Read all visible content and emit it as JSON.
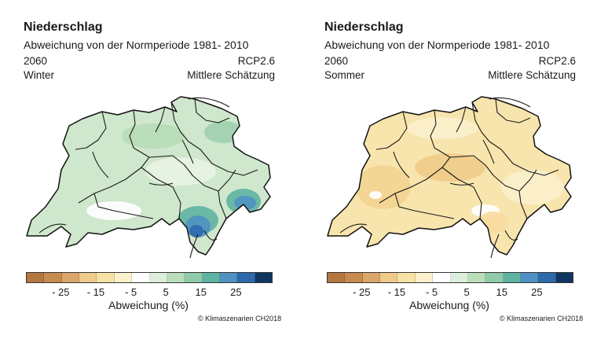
{
  "legend": {
    "colors": [
      "#b3773f",
      "#c88b4f",
      "#dba66a",
      "#efcb8b",
      "#f7e2a6",
      "#fbf2cd",
      "#ffffff",
      "#dcefdc",
      "#b9dfba",
      "#8fcaa9",
      "#5fb3a3",
      "#4f92c3",
      "#2e69ab",
      "#103560"
    ],
    "ticks": [
      "- 25",
      "- 15",
      "- 5",
      "5",
      "15",
      "25"
    ],
    "label": "Abweichung (%)"
  },
  "copyright": "© Klimaszenarien CH2018",
  "panels": [
    {
      "title": "Niederschlag",
      "subtitle": "Abweichung von der Normperiode 1981- 2010",
      "year": "2060",
      "scenario": "RCP2.6",
      "season": "Winter",
      "estimate": "Mittlere Schätzung",
      "fill": "#cfe7cc",
      "patch_colors": [
        "#b7dbb8",
        "#e8f3e4",
        "#ffffff",
        "#9fcfb0",
        "#5fb3a3",
        "#4f92c3",
        "#2e69ab"
      ]
    },
    {
      "title": "Niederschlag",
      "subtitle": "Abweichung von der Normperiode 1981- 2010",
      "year": "2060",
      "scenario": "RCP2.6",
      "season": "Sommer",
      "estimate": "Mittlere Schätzung",
      "fill": "#f8e5ad",
      "patch_colors": [
        "#f3d491",
        "#fbf0cc",
        "#ffffff",
        "#eecb88",
        "#f6dca0"
      ]
    }
  ]
}
